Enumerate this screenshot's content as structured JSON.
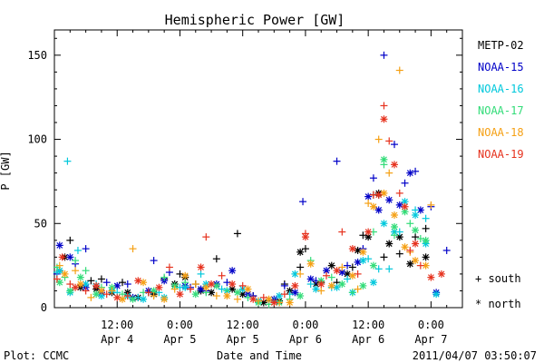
{
  "chart_data": {
    "type": "scatter",
    "title": "Hemispheric Power [GW]",
    "xlabel": "Date and Time",
    "ylabel": "P [GW]",
    "ylim": [
      0,
      165
    ],
    "xlim_hours": [
      0,
      78
    ],
    "yticks": [
      0,
      50,
      100,
      150
    ],
    "xticks": [
      {
        "hour": 12,
        "time": "12:00",
        "date": "Apr 4"
      },
      {
        "hour": 24,
        "time": "0:00",
        "date": "Apr 5"
      },
      {
        "hour": 36,
        "time": "12:00",
        "date": "Apr 5"
      },
      {
        "hour": 48,
        "time": "0:00",
        "date": "Apr 6"
      },
      {
        "hour": 60,
        "time": "12:00",
        "date": "Apr 6"
      },
      {
        "hour": 72,
        "time": "0:00",
        "date": "Apr 7"
      }
    ],
    "legend_position": "right",
    "marker_legend": [
      {
        "symbol": "+",
        "label": "south"
      },
      {
        "symbol": "*",
        "label": "north"
      }
    ],
    "footer_left": "Plot: CCMC",
    "footer_right": "2011/04/07 03:50:07",
    "series": [
      {
        "name": "METP-02",
        "color": "#000000",
        "south": [
          [
            1,
            22
          ],
          [
            3,
            40
          ],
          [
            7,
            16
          ],
          [
            9,
            17
          ],
          [
            13,
            15
          ],
          [
            18,
            9
          ],
          [
            21,
            17
          ],
          [
            24,
            20
          ],
          [
            27,
            14
          ],
          [
            31,
            29
          ],
          [
            35,
            44
          ],
          [
            38,
            7
          ],
          [
            41,
            4
          ],
          [
            44,
            14
          ],
          [
            47,
            24
          ],
          [
            48,
            35
          ],
          [
            51,
            15
          ],
          [
            54,
            15
          ],
          [
            57,
            24
          ],
          [
            59,
            43
          ],
          [
            61,
            67
          ],
          [
            62,
            67
          ],
          [
            63,
            30
          ],
          [
            66,
            32
          ],
          [
            69,
            42
          ],
          [
            71,
            47
          ]
        ],
        "north": [
          [
            2,
            30
          ],
          [
            5,
            12
          ],
          [
            8,
            11
          ],
          [
            11,
            9
          ],
          [
            14,
            9
          ],
          [
            16,
            6
          ],
          [
            19,
            8
          ],
          [
            23,
            14
          ],
          [
            25,
            18
          ],
          [
            28,
            10
          ],
          [
            30,
            9
          ],
          [
            34,
            11
          ],
          [
            36,
            8
          ],
          [
            40,
            3
          ],
          [
            43,
            4
          ],
          [
            45,
            10
          ],
          [
            47,
            33
          ],
          [
            50,
            14
          ],
          [
            53,
            25
          ],
          [
            56,
            20
          ],
          [
            58,
            34
          ],
          [
            60,
            42
          ],
          [
            62,
            68
          ],
          [
            64,
            38
          ],
          [
            66,
            42
          ],
          [
            68,
            26
          ],
          [
            71,
            30
          ]
        ]
      },
      {
        "name": "NOAA-15",
        "color": "#0000c8",
        "south": [
          [
            0.5,
            20
          ],
          [
            4,
            26
          ],
          [
            6,
            35
          ],
          [
            10,
            15
          ],
          [
            14,
            14
          ],
          [
            19,
            28
          ],
          [
            22,
            21
          ],
          [
            26,
            12
          ],
          [
            29,
            10
          ],
          [
            33,
            15
          ],
          [
            38,
            7
          ],
          [
            44,
            13
          ],
          [
            47.5,
            63
          ],
          [
            50,
            16
          ],
          [
            54,
            87
          ],
          [
            56,
            25
          ],
          [
            59,
            35
          ],
          [
            61,
            77
          ],
          [
            63,
            150
          ],
          [
            65,
            97
          ],
          [
            67,
            74
          ],
          [
            69,
            81
          ],
          [
            72,
            60
          ],
          [
            75,
            34
          ]
        ],
        "north": [
          [
            1,
            37
          ],
          [
            3,
            30
          ],
          [
            6,
            12
          ],
          [
            9,
            9
          ],
          [
            12,
            13
          ],
          [
            15,
            6
          ],
          [
            18,
            10
          ],
          [
            21,
            16
          ],
          [
            25,
            13
          ],
          [
            28,
            11
          ],
          [
            31,
            14
          ],
          [
            34,
            22
          ],
          [
            37,
            8
          ],
          [
            42,
            5
          ],
          [
            46,
            9
          ],
          [
            49,
            17
          ],
          [
            52,
            22
          ],
          [
            55,
            21
          ],
          [
            58,
            27
          ],
          [
            60,
            66
          ],
          [
            62,
            58
          ],
          [
            64,
            64
          ],
          [
            66,
            61
          ],
          [
            68,
            80
          ],
          [
            70,
            58
          ],
          [
            73,
            9
          ]
        ]
      },
      {
        "name": "NOAA-16",
        "color": "#00c8dc",
        "south": [
          [
            0.5,
            21
          ],
          [
            2.5,
            87
          ],
          [
            4.5,
            34
          ],
          [
            8,
            14
          ],
          [
            12,
            9
          ],
          [
            16,
            6
          ],
          [
            20,
            9
          ],
          [
            24,
            12
          ],
          [
            28,
            20
          ],
          [
            32,
            11
          ],
          [
            37,
            6
          ],
          [
            42,
            4
          ],
          [
            45,
            8
          ],
          [
            49,
            14
          ],
          [
            53,
            12
          ],
          [
            56,
            17
          ],
          [
            60,
            29
          ],
          [
            62,
            23
          ],
          [
            64,
            23
          ],
          [
            66,
            45
          ],
          [
            69,
            58
          ],
          [
            71,
            53
          ]
        ],
        "north": [
          [
            1,
            22
          ],
          [
            3,
            9
          ],
          [
            6,
            14
          ],
          [
            9,
            7
          ],
          [
            11,
            10
          ],
          [
            14,
            7
          ],
          [
            17,
            5
          ],
          [
            21,
            6
          ],
          [
            25,
            12
          ],
          [
            29,
            14
          ],
          [
            33,
            10
          ],
          [
            36,
            11
          ],
          [
            39,
            4
          ],
          [
            43,
            7
          ],
          [
            46,
            20
          ],
          [
            50,
            11
          ],
          [
            54,
            12
          ],
          [
            57,
            9
          ],
          [
            59,
            28
          ],
          [
            61,
            15
          ],
          [
            63,
            50
          ],
          [
            65,
            45
          ],
          [
            67,
            63
          ],
          [
            69,
            55
          ],
          [
            71,
            38
          ],
          [
            73,
            8
          ]
        ]
      },
      {
        "name": "NOAA-17",
        "color": "#32dc78",
        "south": [
          [
            0.5,
            24
          ],
          [
            2,
            18
          ],
          [
            4,
            28
          ],
          [
            6,
            22
          ],
          [
            9,
            12
          ],
          [
            13,
            8
          ],
          [
            17,
            9
          ],
          [
            21,
            18
          ],
          [
            25,
            15
          ],
          [
            29,
            9
          ],
          [
            33,
            10
          ],
          [
            37,
            6
          ],
          [
            41,
            2
          ],
          [
            45,
            5
          ],
          [
            49,
            28
          ],
          [
            53,
            18
          ],
          [
            57,
            9
          ],
          [
            61,
            45
          ],
          [
            63,
            85
          ],
          [
            65,
            43
          ],
          [
            68,
            50
          ],
          [
            70,
            41
          ]
        ],
        "north": [
          [
            1,
            15
          ],
          [
            3,
            10
          ],
          [
            5,
            18
          ],
          [
            8,
            8
          ],
          [
            11,
            12
          ],
          [
            15,
            5
          ],
          [
            19,
            10
          ],
          [
            23,
            13
          ],
          [
            27,
            8
          ],
          [
            31,
            13
          ],
          [
            35,
            9
          ],
          [
            39,
            3
          ],
          [
            43,
            3
          ],
          [
            47,
            7
          ],
          [
            51,
            16
          ],
          [
            55,
            14
          ],
          [
            59,
            13
          ],
          [
            61,
            25
          ],
          [
            63,
            88
          ],
          [
            65,
            48
          ],
          [
            67,
            57
          ],
          [
            69,
            46
          ],
          [
            71,
            40
          ]
        ]
      },
      {
        "name": "NOAA-18",
        "color": "#f5a014",
        "south": [
          [
            1,
            25
          ],
          [
            4,
            22
          ],
          [
            7,
            6
          ],
          [
            11,
            10
          ],
          [
            15,
            35
          ],
          [
            19,
            7
          ],
          [
            23,
            11
          ],
          [
            27,
            14
          ],
          [
            31,
            7
          ],
          [
            35,
            5
          ],
          [
            39,
            4
          ],
          [
            43,
            3
          ],
          [
            47,
            20
          ],
          [
            51,
            10
          ],
          [
            55,
            24
          ],
          [
            58,
            11
          ],
          [
            60,
            62
          ],
          [
            62,
            100
          ],
          [
            64,
            80
          ],
          [
            66,
            141
          ],
          [
            68,
            33
          ],
          [
            72,
            61
          ]
        ],
        "north": [
          [
            2,
            20
          ],
          [
            5,
            14
          ],
          [
            9,
            10
          ],
          [
            13,
            5
          ],
          [
            17,
            15
          ],
          [
            21,
            5
          ],
          [
            25,
            19
          ],
          [
            29,
            12
          ],
          [
            33,
            7
          ],
          [
            37,
            11
          ],
          [
            41,
            5
          ],
          [
            45,
            3
          ],
          [
            49,
            26
          ],
          [
            53,
            13
          ],
          [
            57,
            19
          ],
          [
            59,
            33
          ],
          [
            61,
            60
          ],
          [
            63,
            68
          ],
          [
            65,
            55
          ],
          [
            67,
            36
          ],
          [
            69,
            28
          ],
          [
            71,
            25
          ]
        ]
      },
      {
        "name": "NOAA-19",
        "color": "#e6321e",
        "south": [
          [
            0.5,
            17
          ],
          [
            3,
            14
          ],
          [
            6,
            10
          ],
          [
            10,
            8
          ],
          [
            14,
            7
          ],
          [
            18,
            9
          ],
          [
            22,
            24
          ],
          [
            26,
            11
          ],
          [
            29,
            42
          ],
          [
            32,
            19
          ],
          [
            36,
            13
          ],
          [
            40,
            6
          ],
          [
            44,
            8
          ],
          [
            48,
            44
          ],
          [
            52,
            19
          ],
          [
            55,
            45
          ],
          [
            58,
            20
          ],
          [
            61,
            67
          ],
          [
            63,
            120
          ],
          [
            64,
            99
          ],
          [
            66,
            68
          ],
          [
            68,
            34
          ],
          [
            70,
            25
          ]
        ],
        "north": [
          [
            1.5,
            30
          ],
          [
            4,
            12
          ],
          [
            8,
            13
          ],
          [
            12,
            6
          ],
          [
            16,
            16
          ],
          [
            20,
            12
          ],
          [
            24,
            8
          ],
          [
            28,
            24
          ],
          [
            30,
            14
          ],
          [
            34,
            14
          ],
          [
            38,
            5
          ],
          [
            42,
            3
          ],
          [
            46,
            13
          ],
          [
            48,
            42
          ],
          [
            51,
            14
          ],
          [
            54,
            22
          ],
          [
            57,
            35
          ],
          [
            60,
            45
          ],
          [
            62,
            67
          ],
          [
            63,
            112
          ],
          [
            65,
            85
          ],
          [
            67,
            60
          ],
          [
            69,
            38
          ],
          [
            72,
            18
          ],
          [
            74,
            20
          ]
        ]
      }
    ]
  }
}
